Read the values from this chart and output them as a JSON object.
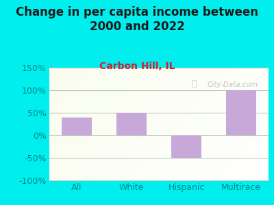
{
  "title": "Change in per capita income between\n2000 and 2022",
  "subtitle": "Carbon Hill, IL",
  "categories": [
    "All",
    "White",
    "Hispanic",
    "Multirace"
  ],
  "values": [
    40,
    50,
    -50,
    100
  ],
  "bar_color": "#c8a8d8",
  "background_color": "#00EEEE",
  "title_color": "#1a1a1a",
  "subtitle_color": "#cc2233",
  "tick_color": "#008888",
  "ytick_color": "#008888",
  "ylim": [
    -100,
    150
  ],
  "yticks": [
    -100,
    -50,
    0,
    50,
    100,
    150
  ],
  "ytick_labels": [
    "-100%",
    "-50%",
    "0%",
    "50%",
    "100%",
    "150%"
  ],
  "grid_color": "#bbccbb",
  "watermark": "City-Data.com",
  "title_fontsize": 12,
  "subtitle_fontsize": 10,
  "tick_fontsize": 9
}
